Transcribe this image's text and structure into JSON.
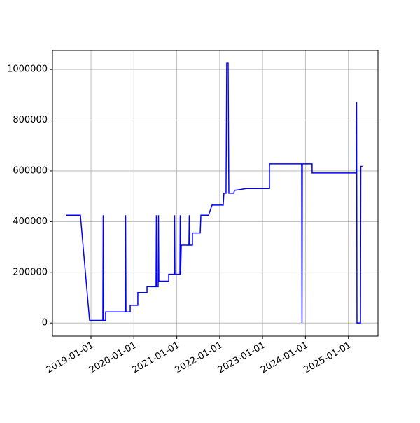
{
  "chart_data": {
    "type": "line",
    "color": "#0000ff",
    "grid": true,
    "x": [
      "2018-06-06",
      "2018-10-03",
      "2018-12-20",
      "2019-04-12",
      "2019-04-15",
      "2019-04-18",
      "2019-05-06",
      "2019-05-06",
      "2019-10-20",
      "2019-10-23",
      "2019-10-26",
      "2019-12-01",
      "2019-12-01",
      "2020-02-04",
      "2020-02-04",
      "2020-04-22",
      "2020-04-22",
      "2020-07-08",
      "2020-07-11",
      "2020-07-14",
      "2020-07-26",
      "2020-07-29",
      "2020-08-01",
      "2020-10-24",
      "2020-10-24",
      "2020-12-10",
      "2020-12-13",
      "2020-12-16",
      "2021-01-27",
      "2021-01-30",
      "2021-02-02",
      "2021-02-08",
      "2021-04-14",
      "2021-04-17",
      "2021-04-20",
      "2021-05-14",
      "2021-05-14",
      "2021-07-19",
      "2021-07-25",
      "2021-09-28",
      "2021-10-28",
      "2022-01-31",
      "2022-02-06",
      "2022-02-24",
      "2022-03-02",
      "2022-03-14",
      "2022-03-20",
      "2022-05-01",
      "2022-05-07",
      "2022-06-06",
      "2022-08-16",
      "2023-03-01",
      "2023-03-01",
      "2023-11-30",
      "2023-12-03",
      "2023-12-06",
      "2024-02-27",
      "2024-02-27",
      "2025-03-09",
      "2025-03-12",
      "2025-03-15",
      "2025-04-14",
      "2025-04-17",
      "2025-05-01"
    ],
    "values": [
      425000,
      425000,
      10000,
      10000,
      425000,
      10000,
      10000,
      44000,
      44000,
      425000,
      44000,
      44000,
      70000,
      70000,
      120000,
      120000,
      143000,
      143000,
      425000,
      143000,
      143000,
      425000,
      165000,
      165000,
      192000,
      192000,
      425000,
      192000,
      192000,
      425000,
      192000,
      307000,
      307000,
      425000,
      307000,
      307000,
      355000,
      355000,
      425000,
      425000,
      465000,
      465000,
      512000,
      512000,
      1025000,
      1025000,
      512000,
      512000,
      523000,
      525000,
      530000,
      530000,
      628000,
      628000,
      0,
      628000,
      628000,
      592000,
      592000,
      872000,
      0,
      0,
      618000,
      618000
    ],
    "xlim": [
      "2018-02-07",
      "2025-09-10"
    ],
    "xticks": [
      "2019-01-01",
      "2020-01-01",
      "2021-01-01",
      "2022-01-01",
      "2023-01-01",
      "2024-01-01",
      "2025-01-01"
    ],
    "ylim": [
      -52000,
      1075000
    ],
    "yticks": [
      0,
      200000,
      400000,
      600000,
      800000,
      1000000
    ]
  }
}
